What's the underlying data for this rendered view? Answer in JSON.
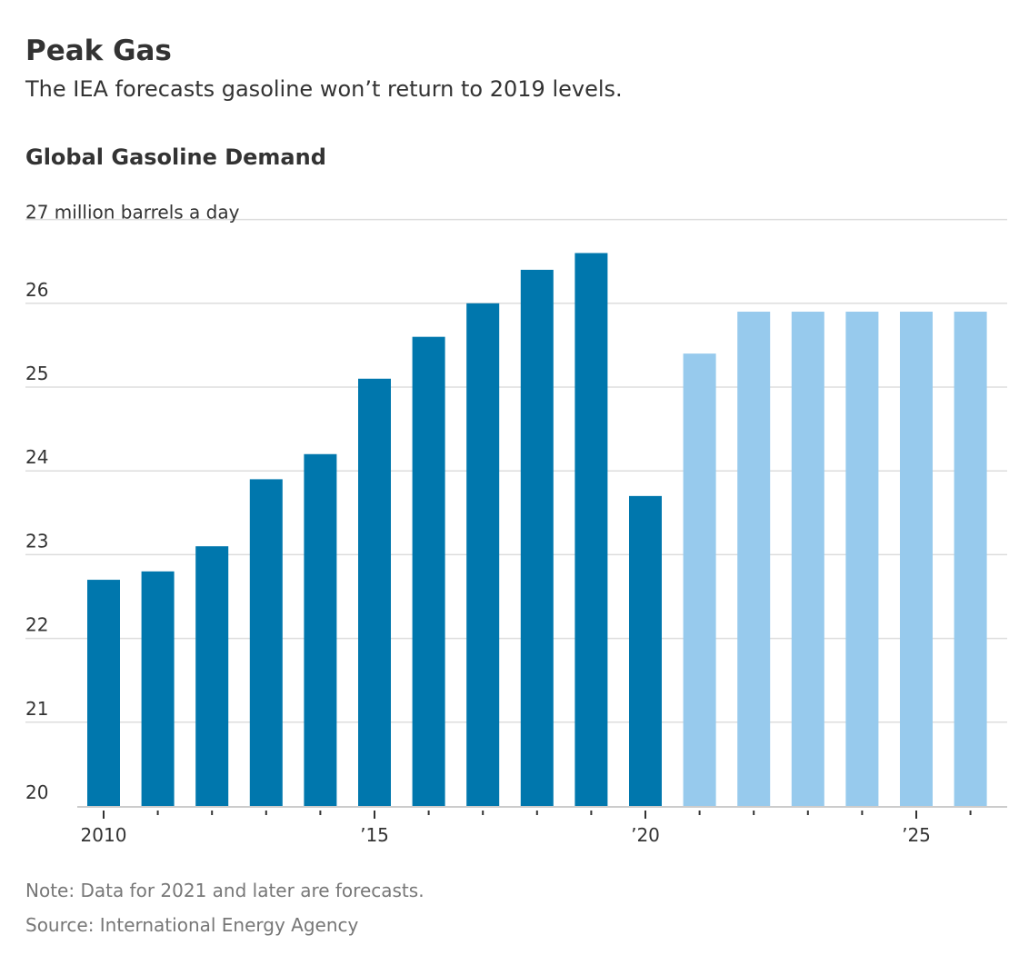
{
  "header": {
    "title": "Peak Gas",
    "subtitle": "The IEA forecasts gasoline won’t return to 2019 levels."
  },
  "chart_data": {
    "type": "bar",
    "title": "Global Gasoline Demand",
    "unit_label": "27 million barrels a day",
    "categories": [
      "2010",
      "2011",
      "2012",
      "2013",
      "2014",
      "2015",
      "2016",
      "2017",
      "2018",
      "2019",
      "2020",
      "2021",
      "2022",
      "2023",
      "2024",
      "2025",
      "2026"
    ],
    "values": [
      22.7,
      22.8,
      23.1,
      23.9,
      24.2,
      25.1,
      25.6,
      26.0,
      26.4,
      26.6,
      23.7,
      25.4,
      25.9,
      25.9,
      25.9,
      25.9,
      25.9
    ],
    "forecast_from": "2021",
    "ylim": [
      20,
      27
    ],
    "y_ticks": [
      "20",
      "21",
      "22",
      "23",
      "24",
      "25",
      "26"
    ],
    "x_tick_labels": [
      {
        "category": "2010",
        "label": "2010"
      },
      {
        "category": "2015",
        "label": "’15"
      },
      {
        "category": "2020",
        "label": "’20"
      },
      {
        "category": "2025",
        "label": "’25"
      }
    ],
    "grid": true,
    "colors": {
      "actual": "#0077ad",
      "forecast": "#97caed",
      "grid": "#dddddd"
    }
  },
  "footer": {
    "note": "Note: Data for 2021 and later are forecasts.",
    "source": "Source: International Energy Agency"
  }
}
